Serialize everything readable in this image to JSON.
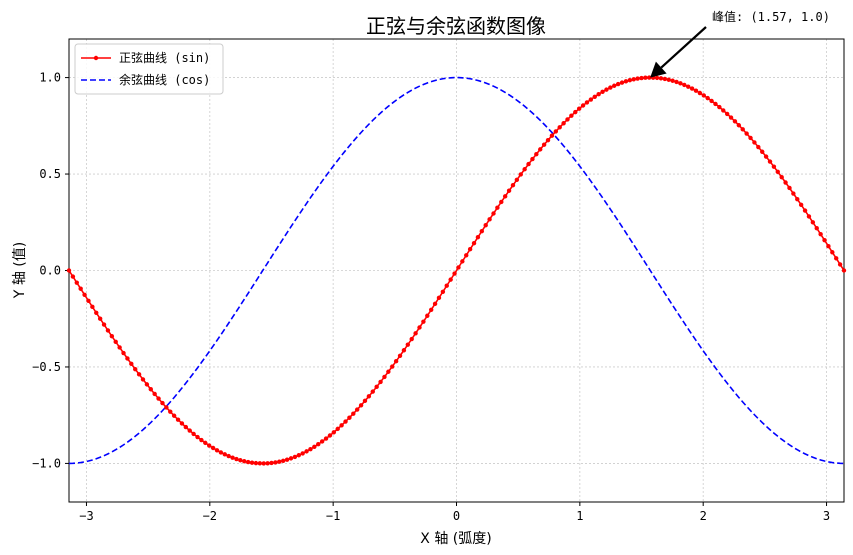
{
  "chart_data": {
    "type": "line",
    "title": "正弦与余弦函数图像",
    "xlabel": "X 轴 (弧度)",
    "ylabel": "Y 轴 (值)",
    "xlim": [
      -3.1416,
      3.1416
    ],
    "ylim": [
      -1.2,
      1.2
    ],
    "grid": true,
    "legend_position": "top-left",
    "x_ticks": [
      {
        "value": -3,
        "label": "−3"
      },
      {
        "value": -2,
        "label": "−2"
      },
      {
        "value": -1,
        "label": "−1"
      },
      {
        "value": 0,
        "label": "0"
      },
      {
        "value": 1,
        "label": "1"
      },
      {
        "value": 2,
        "label": "2"
      },
      {
        "value": 3,
        "label": "3"
      }
    ],
    "y_ticks": [
      {
        "value": 1.0,
        "label": "1.0"
      },
      {
        "value": 0.5,
        "label": "0.5"
      },
      {
        "value": 0.0,
        "label": "0.0"
      },
      {
        "value": -0.5,
        "label": "−0.5"
      },
      {
        "value": -1.0,
        "label": "−1.0"
      }
    ],
    "x_sampling": {
      "start": -3.1416,
      "stop": 3.1416,
      "points": 200
    },
    "series": [
      {
        "name": "正弦曲线 (sin)",
        "function": "sin",
        "color": "#ff0000",
        "style": "solid",
        "marker": "dot"
      },
      {
        "name": "余弦曲线 (cos)",
        "function": "cos",
        "color": "#0000ff",
        "style": "dashed",
        "marker": "none"
      }
    ],
    "annotation": {
      "text": "峰值: (1.57, 1.0)",
      "x": 1.57,
      "y": 1.0
    }
  }
}
